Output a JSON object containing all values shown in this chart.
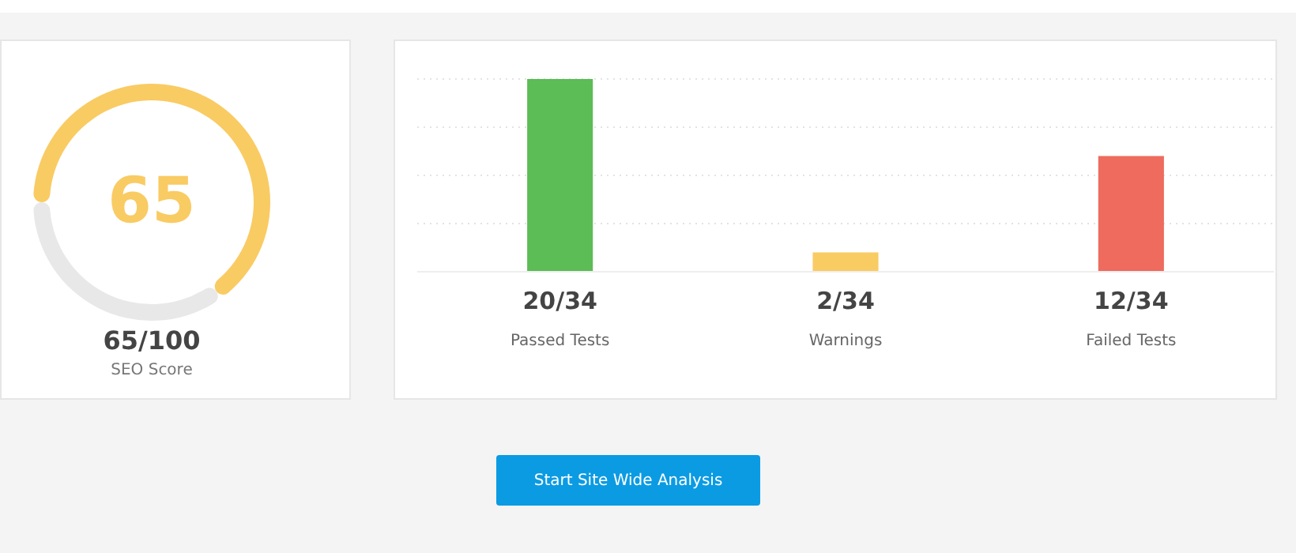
{
  "chart_data": [
    {
      "type": "donut",
      "categories": [
        null,
        null
      ],
      "values": [
        65,
        35
      ],
      "colors": [
        "#f9cb63",
        "#e8e8e8"
      ],
      "value_labels": [
        "65",
        null
      ],
      "title": "65/100",
      "subtitle": "SEO Score",
      "legend": false
    },
    {
      "type": "bar",
      "categories": [
        "Passed Tests",
        "Warnings",
        "Failed Tests"
      ],
      "values": [
        20,
        2,
        12
      ],
      "colors": [
        "#5cbc56",
        "#f9cb63",
        "#ee6b5e"
      ],
      "value_labels": [
        "20/34",
        "2/34",
        "12/34"
      ],
      "tick_labels": "x",
      "grid": "y",
      "legend": false,
      "annotations": [
        "Start Site Wide Analysis"
      ]
    }
  ]
}
